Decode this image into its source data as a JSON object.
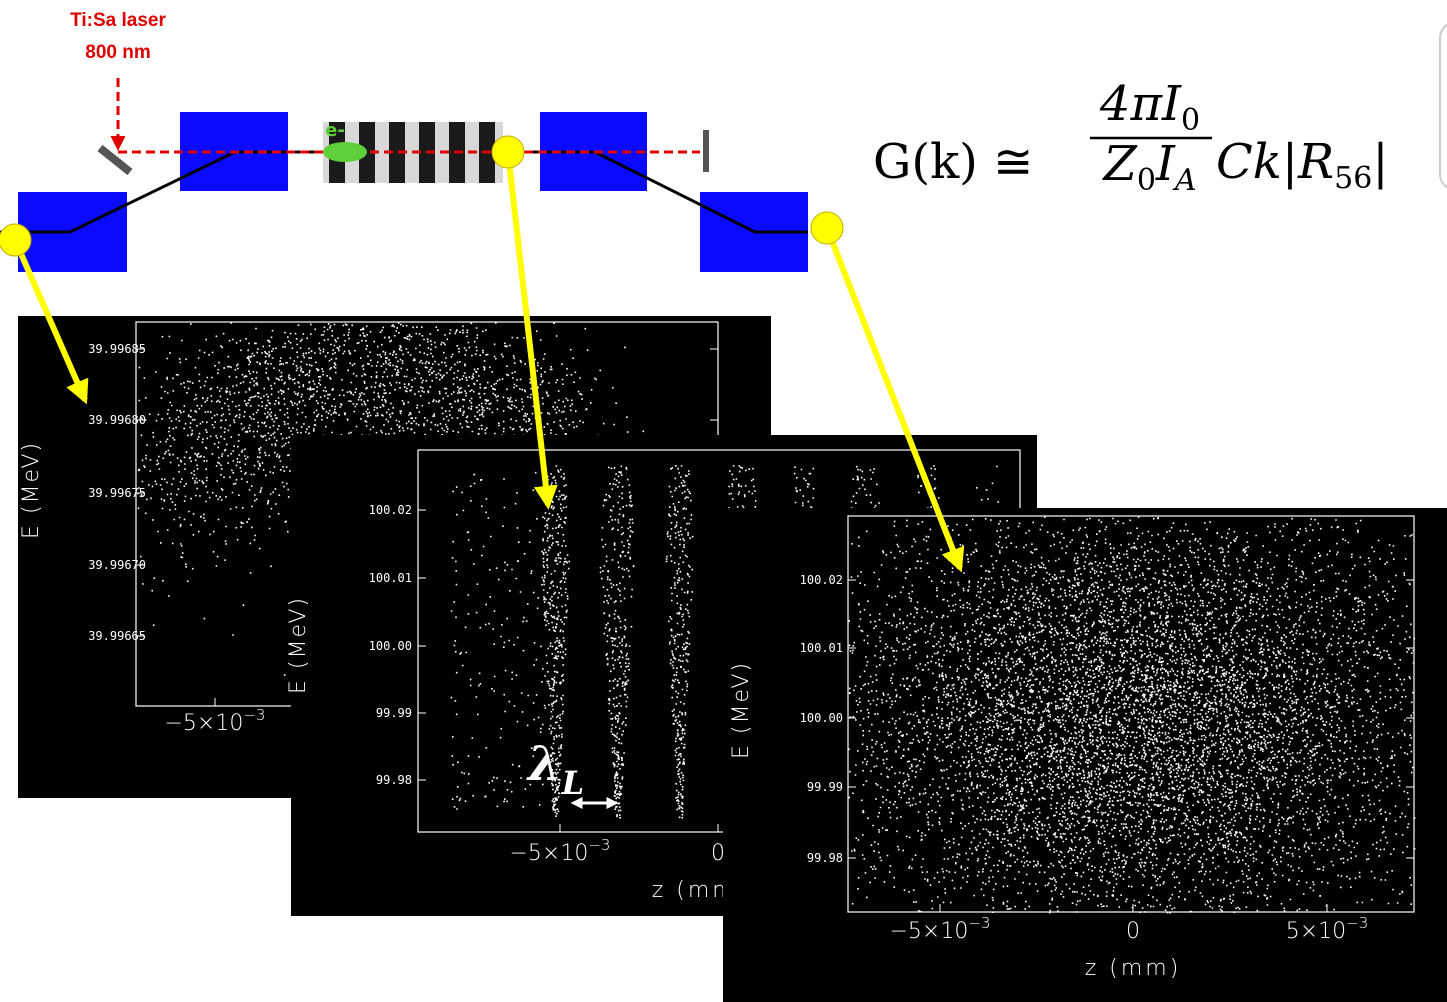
{
  "laser": {
    "name": "Ti:Sa laser",
    "wavelength": "800 nm"
  },
  "electron_label": "e-",
  "formula": {
    "lhs": "G(k) ≅ ",
    "num": "4πI",
    "num_sub": "0",
    "den1": "Z",
    "den1_sub": "0",
    "den2": "I",
    "den2_sub": "A",
    "rhs": "Ck|R",
    "rhs_sub": "56",
    "rhs_end": "|"
  },
  "panels": [
    {
      "y_label": "E (MeV)",
      "y_ticks": [
        "39.99685",
        "39.99680",
        "39.99675",
        "39.99670",
        "39.99665"
      ],
      "x_ticks": [
        {
          "base": "−5×10",
          "exp": "−3"
        }
      ]
    },
    {
      "y_label": "E (MeV)",
      "y_ticks": [
        "100.02",
        "100.01",
        "100.00",
        "99.99",
        "99.98"
      ],
      "x_ticks": [
        {
          "base": "−5×10",
          "exp": "−3"
        },
        {
          "base": "0"
        }
      ],
      "x_label": "z (mm)"
    },
    {
      "y_label": "E (MeV)",
      "y_ticks": [
        "100.02",
        "100.01",
        "100.00",
        "99.99",
        "99.98"
      ],
      "x_ticks": [
        {
          "base": "−5×10",
          "exp": "−3"
        },
        {
          "base": "0"
        },
        {
          "base": "5×10",
          "exp": "−3"
        }
      ],
      "x_label": "z (mm)"
    }
  ],
  "lambda": {
    "symbol": "λ",
    "sub": "L"
  }
}
